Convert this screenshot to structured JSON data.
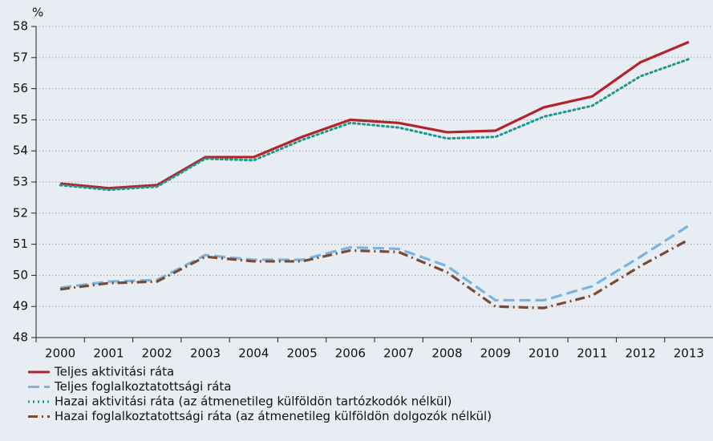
{
  "chart_data": {
    "type": "line",
    "y_unit_label": "%",
    "categories": [
      "2000",
      "2001",
      "2002",
      "2003",
      "2004",
      "2005",
      "2006",
      "2007",
      "2008",
      "2009",
      "2010",
      "2011",
      "2012",
      "2013"
    ],
    "series": [
      {
        "name": "Teljes aktivitási ráta",
        "color": "#b5232a",
        "style": "solid",
        "values": [
          52.95,
          52.8,
          52.9,
          53.8,
          53.8,
          54.45,
          55.0,
          54.9,
          54.6,
          54.65,
          55.4,
          55.75,
          56.85,
          57.5
        ]
      },
      {
        "name": "Teljes foglalkoztatottsági ráta",
        "color": "#7ab4e0",
        "style": "dashed",
        "values": [
          49.6,
          49.8,
          49.85,
          50.65,
          50.5,
          50.5,
          50.9,
          50.85,
          50.3,
          49.2,
          49.2,
          49.65,
          50.6,
          51.6
        ]
      },
      {
        "name": "Hazai aktivitási ráta (az átmenetileg külföldön tartózkodók nélkül)",
        "color": "#1a9a8c",
        "style": "dotted",
        "values": [
          52.9,
          52.75,
          52.85,
          53.75,
          53.7,
          54.35,
          54.9,
          54.75,
          54.4,
          54.45,
          55.1,
          55.45,
          56.4,
          56.95
        ]
      },
      {
        "name": "Hazai foglalkoztatottsági ráta (az átmenetileg külföldön dolgozók nélkül)",
        "color": "#7a4a32",
        "style": "dashdot",
        "values": [
          49.55,
          49.75,
          49.8,
          50.6,
          50.45,
          50.45,
          50.8,
          50.75,
          50.1,
          49.0,
          48.95,
          49.35,
          50.3,
          51.15
        ]
      }
    ],
    "ylim": [
      48,
      58
    ],
    "yticks": [
      48,
      49,
      50,
      51,
      52,
      53,
      54,
      55,
      56,
      57,
      58
    ],
    "grid": true,
    "legend": "bottom"
  }
}
